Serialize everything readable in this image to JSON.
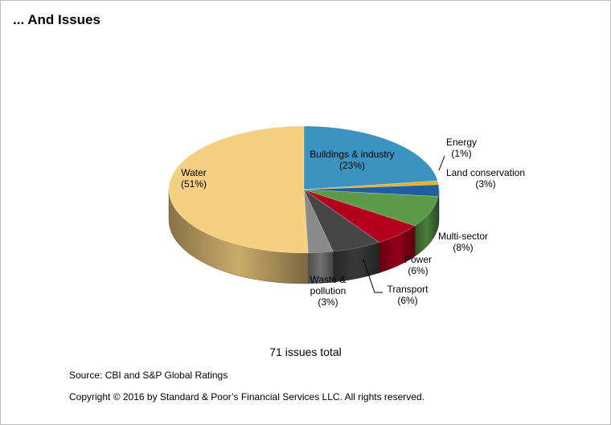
{
  "title": "... And Issues",
  "total_text": "71 issues total",
  "source_text": "Source: CBI and S&P Global Ratings",
  "copyright_text": "Copyright © 2016 by Standard & Poor’s Financial Services LLC. All rights reserved.",
  "chart_data": {
    "type": "pie",
    "style": "3d",
    "title": "... And Issues",
    "total": 71,
    "slices": [
      {
        "label": "Buildings & industry",
        "percent": 23,
        "label_lines": [
          "Buildings & industry",
          "(23%)"
        ],
        "color": "#3b93bf"
      },
      {
        "label": "Energy",
        "percent": 1,
        "label_lines": [
          "Energy",
          "(1%)"
        ],
        "color": "#e8b21e"
      },
      {
        "label": "Land conservation",
        "percent": 3,
        "label_lines": [
          "Land conservation",
          "(3%)"
        ],
        "color": "#1f5fa0"
      },
      {
        "label": "Multi-sector",
        "percent": 8,
        "label_lines": [
          "Multi-sector",
          "(8%)"
        ],
        "color": "#5a9a48"
      },
      {
        "label": "Power",
        "percent": 6,
        "label_lines": [
          "Power",
          "(6%)"
        ],
        "color": "#b3001e"
      },
      {
        "label": "Transport",
        "percent": 6,
        "label_lines": [
          "Transport",
          "(6%)"
        ],
        "color": "#464646"
      },
      {
        "label": "Waste & pollution",
        "percent": 3,
        "label_lines": [
          "Waste &",
          "pollution",
          "(3%)"
        ],
        "color": "#8a8a8a"
      },
      {
        "label": "Water",
        "percent": 51,
        "label_lines": [
          "Water",
          "(51%)"
        ],
        "color": "#f6d081"
      }
    ]
  }
}
